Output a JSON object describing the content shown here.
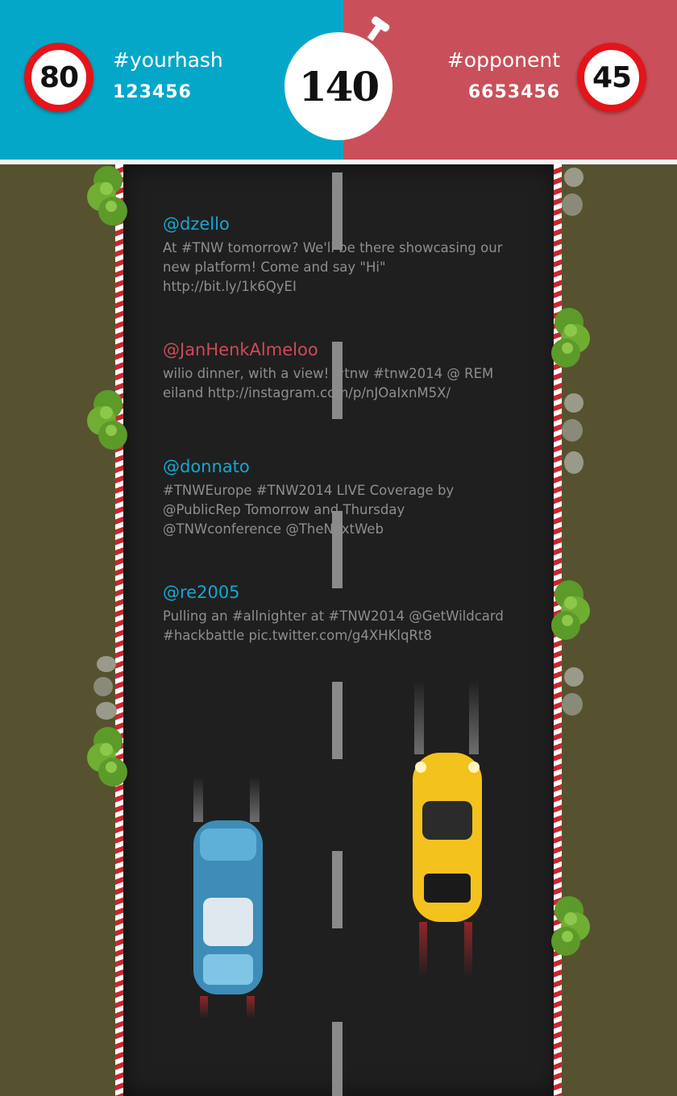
{
  "player": {
    "hashtag": "#yourhash",
    "count": "123456",
    "speed": "80"
  },
  "opponent": {
    "hashtag": "#opponent",
    "count": "6653456",
    "speed": "45"
  },
  "timer": {
    "value": "140"
  },
  "colors": {
    "player_panel": "#05a7c9",
    "opponent_panel": "#c9505a",
    "player_handle": "#16a6cf",
    "opponent_handle": "#cc4b58"
  },
  "tweets": [
    {
      "handle": "@dzello",
      "side": "player",
      "text": "At #TNW tomorrow? We'll be there showcasing our new platform! Come and say \"Hi\" http://bit.ly/1k6QyEI"
    },
    {
      "handle": "@JanHenkAlmeloo",
      "side": "opponent",
      "text": "wilio dinner, with a view! #tnw #tnw2014 @ REM eiland http://instagram.com/p/nJOaIxnM5X/"
    },
    {
      "handle": "@donnato",
      "side": "player",
      "text": "#TNWEurope #TNW2014 LIVE Coverage by @PublicRep Tomorrow and Thursday @TNWconference @TheNextWeb"
    },
    {
      "handle": "@re2005",
      "side": "player",
      "text": "Pulling an #allnighter at #TNW2014 @GetWildcard #hackbattle pic.twitter.com/g4XHKlqRt8"
    }
  ]
}
